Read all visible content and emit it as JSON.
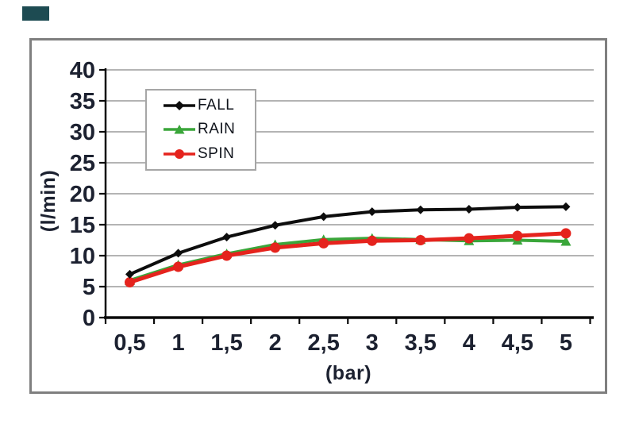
{
  "colors": {
    "background": "#ffffff",
    "frame_border": "#7f7f7f",
    "grid": "#9b9b9b",
    "axis": "#0a0a0a",
    "tick_text": "#1c2130",
    "corner_box": "#1d4b52"
  },
  "chart_data": {
    "type": "line",
    "title": "",
    "xlabel": "(bar)",
    "ylabel": "(l/min)",
    "x": [
      0.5,
      1,
      1.5,
      2,
      2.5,
      3,
      3.5,
      4,
      4.5,
      5
    ],
    "xtick_labels": [
      "0,5",
      "1",
      "1,5",
      "2",
      "2,5",
      "3",
      "3,5",
      "4",
      "4,5",
      "5"
    ],
    "ylim": [
      0,
      40
    ],
    "ytick_step": 5,
    "ytick_labels": [
      "0",
      "5",
      "10",
      "15",
      "20",
      "25",
      "30",
      "35",
      "40"
    ],
    "grid": "horizontal",
    "legend": {
      "position": "upper-left-inside",
      "entries": [
        "FALL",
        "RAIN",
        "SPIN"
      ]
    },
    "series": [
      {
        "name": "FALL",
        "color": "#0d0d0d",
        "marker": "diamond",
        "values": [
          7.0,
          10.4,
          13.0,
          14.9,
          16.3,
          17.1,
          17.4,
          17.5,
          17.8,
          17.9
        ]
      },
      {
        "name": "RAIN",
        "color": "#3aa63a",
        "marker": "triangle",
        "values": [
          6.0,
          8.5,
          10.3,
          11.8,
          12.6,
          12.8,
          12.6,
          12.4,
          12.5,
          12.3
        ]
      },
      {
        "name": "SPIN",
        "color": "#e5231d",
        "marker": "circle",
        "values": [
          5.7,
          8.2,
          10.0,
          11.3,
          12.0,
          12.4,
          12.5,
          12.8,
          13.2,
          13.6
        ]
      }
    ]
  }
}
